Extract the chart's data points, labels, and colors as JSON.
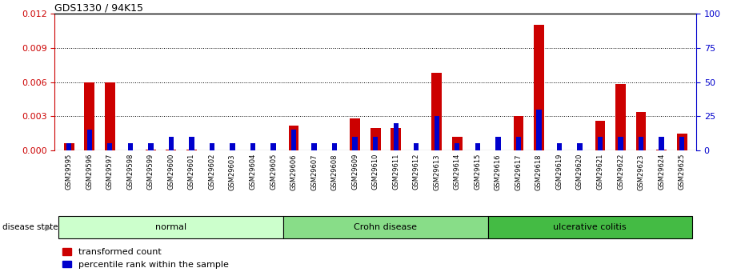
{
  "title": "GDS1330 / 94K15",
  "samples": [
    "GSM29595",
    "GSM29596",
    "GSM29597",
    "GSM29598",
    "GSM29599",
    "GSM29600",
    "GSM29601",
    "GSM29602",
    "GSM29603",
    "GSM29604",
    "GSM29605",
    "GSM29606",
    "GSM29607",
    "GSM29608",
    "GSM29609",
    "GSM29610",
    "GSM29611",
    "GSM29612",
    "GSM29613",
    "GSM29614",
    "GSM29615",
    "GSM29616",
    "GSM29617",
    "GSM29618",
    "GSM29619",
    "GSM29620",
    "GSM29621",
    "GSM29622",
    "GSM29623",
    "GSM29624",
    "GSM29625"
  ],
  "transformed_count": [
    0.0006,
    0.006,
    0.006,
    0.0,
    0.0001,
    0.0001,
    0.0001,
    0.0,
    0.0,
    0.0,
    0.0,
    0.0022,
    0.0,
    0.0,
    0.0028,
    0.002,
    0.002,
    0.0,
    0.0068,
    0.0012,
    0.0,
    0.0,
    0.003,
    0.011,
    0.0,
    0.0,
    0.0026,
    0.0058,
    0.0034,
    0.0001,
    0.0015
  ],
  "percentile_rank": [
    5,
    15,
    5,
    5,
    5,
    10,
    10,
    5,
    5,
    5,
    5,
    15,
    5,
    5,
    10,
    10,
    20,
    5,
    25,
    5,
    5,
    10,
    10,
    30,
    5,
    5,
    10,
    10,
    10,
    10,
    10
  ],
  "groups": [
    {
      "label": "normal",
      "start": 0,
      "end": 11,
      "color": "#ccffcc"
    },
    {
      "label": "Crohn disease",
      "start": 11,
      "end": 21,
      "color": "#88dd88"
    },
    {
      "label": "ulcerative colitis",
      "start": 21,
      "end": 31,
      "color": "#44bb44"
    }
  ],
  "ylim_left": [
    0,
    0.012
  ],
  "ylim_right": [
    0,
    100
  ],
  "yticks_left": [
    0,
    0.003,
    0.006,
    0.009,
    0.012
  ],
  "yticks_right": [
    0,
    25,
    50,
    75,
    100
  ],
  "red_color": "#cc0000",
  "blue_color": "#0000cc",
  "disease_state_label": "disease state",
  "legend_red": "transformed count",
  "legend_blue": "percentile rank within the sample",
  "tick_bg_color": "#c8c8c8",
  "plot_bg_color": "#ffffff"
}
